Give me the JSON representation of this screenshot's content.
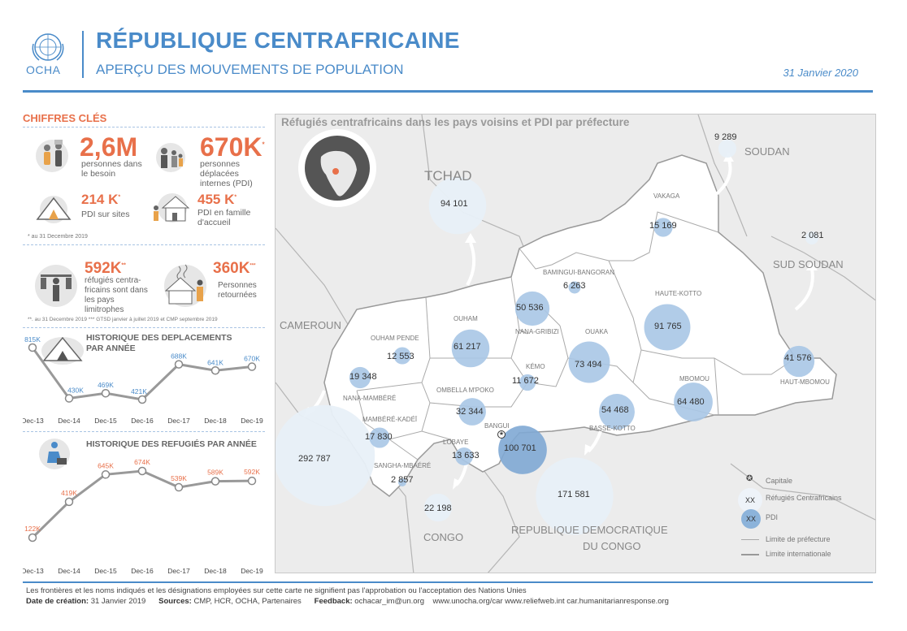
{
  "header": {
    "logo_text": "OCHA",
    "title": "RÉPUBLIQUE CENTRAFRICAINE",
    "subtitle": "APERÇU DES MOUVEMENTS DE POPULATION",
    "date": "31  Janvier 2020"
  },
  "key_figures": {
    "title": "CHIFFRES CLÉS",
    "in_need_value": "2,6M",
    "in_need_label": "personnes dans le besoin",
    "idp_value": "670K",
    "idp_sup": "*",
    "idp_label": "personnes déplacées internes (PDI)",
    "sites_value": "214 K",
    "sites_sup": "*",
    "sites_label": "PDI sur sites",
    "host_value": "455 K",
    "host_sup": "*",
    "host_label": "PDI en famille d'accueil",
    "note1": "* au 31 Decembre 2019",
    "refugees_value": "592K",
    "refugees_sup": "**",
    "refugees_label": "réfugiés centra-fricains sont dans les pays limitrophes",
    "returnees_value": "360K",
    "returnees_sup": "***",
    "returnees_label": "Personnes retournées",
    "note2": "**. au 31 Decembre 2019 *** GTSD  janvier à juillet 2019 et CMP septembre 2019"
  },
  "chart_data": [
    {
      "type": "line",
      "title": "HISTORIQUE DES DEPLACEMENTS PAR ANNÉE",
      "categories": [
        "Dec-13",
        "Dec-14",
        "Dec-15",
        "Dec-16",
        "Dec-17",
        "Dec-18",
        "Dec-19"
      ],
      "values": [
        815,
        430,
        469,
        421,
        688,
        641,
        670
      ],
      "labels": [
        "815K",
        "430K",
        "469K",
        "421K",
        "688K",
        "641K",
        "670K"
      ],
      "color": "#4a8bc9"
    },
    {
      "type": "line",
      "title": "HISTORIQUE DES REFUGIÉS PAR ANNÉE",
      "categories": [
        "Dec-13",
        "Dec-14",
        "Dec-15",
        "Dec-16",
        "Dec-17",
        "Dec-18",
        "Dec-19"
      ],
      "values": [
        122,
        419,
        645,
        674,
        539,
        589,
        592
      ],
      "labels": [
        "122K",
        "419K",
        "645K",
        "674K",
        "539K",
        "589K",
        "592K"
      ],
      "color": "#e8704a"
    }
  ],
  "map": {
    "title": "Réfugiés centrafricains dans les pays voisins et PDI par préfecture",
    "countries": {
      "tchad": "TCHAD",
      "soudan": "SOUDAN",
      "sud_soudan": "SUD SOUDAN",
      "cameroun": "CAMEROUN",
      "congo": "CONGO",
      "rdc1": "REPUBLIQUE DEMOCRATIQUE",
      "rdc2": "DU CONGO"
    },
    "refugees": {
      "tchad": "94 101",
      "soudan": "9 289",
      "sud_soudan": "2 081",
      "cameroun": "292 787",
      "congo": "22 198",
      "rdc": "171 581"
    },
    "prefectures": {
      "vakaga": "VAKAGA",
      "bamingui": "BAMINGUI-BANGORAN",
      "haute_kotto": "HAUTE-KOTTO",
      "ouham_pende": "OUHAM PENDE",
      "ouham": "OUHAM",
      "nana_gribizi": "NANA-GRIBIZI",
      "ouaka": "OUAKA",
      "kemo": "KÉMO",
      "nana_mambere": "NANA-MAMBÉRÉ",
      "ombella": "OMBELLA M'POKO",
      "mbomou": "MBOMOU",
      "haut_mbomou": "HAUT-MBOMOU",
      "mambere_kadei": "MAMBÉRÉ-KADÉÏ",
      "bangui": "BANGUI",
      "basse_kotto": "BASSE-KOTTO",
      "lobaye": "LOBAYE",
      "sangha": "SANGHA-MBAÉRÉ"
    },
    "idp": {
      "vakaga": "15 169",
      "bamingui": "6 263",
      "haute_kotto": "91 765",
      "ouham_pende": "12 553",
      "ouham": "61 217",
      "nana_gribizi": "50 536",
      "ouaka": "73 494",
      "kemo": "11 672",
      "nana_mambere": "19 348",
      "ombella": "32 344",
      "mbomou": "64 480",
      "haut_mbomou": "41 576",
      "mambere_kadei": "17 830",
      "bangui": "100 701",
      "basse_kotto": "54 468",
      "lobaye": "13 633",
      "sangha": "2 857"
    },
    "legend": {
      "capital": "Capitale",
      "refugees": "Réfugiés Centrafricains",
      "idp": "PDI",
      "xx": "XX",
      "pref_limit": "Limite de préfecture",
      "intl_limit": "Limite internationale"
    }
  },
  "footer": {
    "disclaimer": "Les frontières et les noms indiqués et les désignations employées sur cette carte ne signifient pas l'approbation ou l'acceptation des Nations Unies",
    "date_label": "Date de création:",
    "date_value": "31 Janvier  2019",
    "sources_label": "Sources:",
    "sources_value": "CMP, HCR, OCHA, Partenaires",
    "feedback_label": "Feedback:",
    "feedback_value": "ochacar_im@un.org",
    "links": "www.unocha.org/car     www.reliefweb.int     car.humanitarianresponse.org"
  }
}
